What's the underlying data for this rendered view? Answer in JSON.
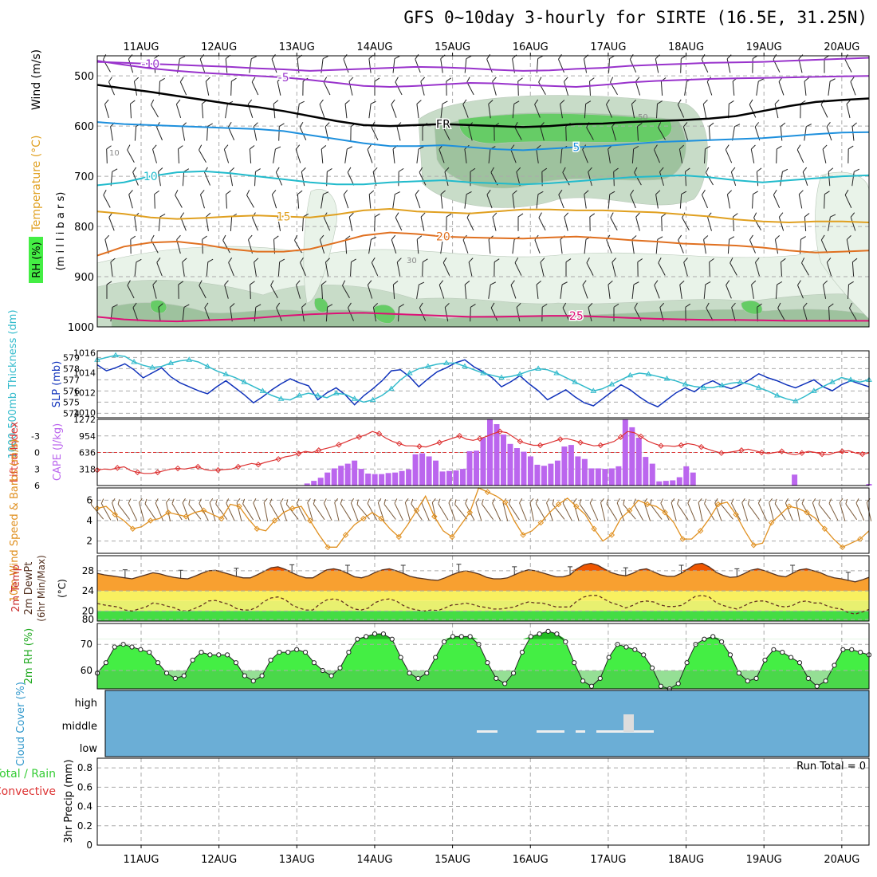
{
  "title": "GFS 0~10day 3-hourly for SIRTE (16.5E, 31.25N)",
  "colors": {
    "rh_fill": [
      "#e9f3e9",
      "#c8dcc8",
      "#9ec29e",
      "#66cc66"
    ],
    "temp_5": "#9933cc",
    "temp_fr": "#000000",
    "temp_p5": "#1e90dd",
    "temp_10": "#22bbcc",
    "temp_15": "#e0a020",
    "temp_20": "#e07020",
    "temp_25": "#dd1177",
    "slp": "#1133bb",
    "thickness": "#33bbcc",
    "li": "#dd3333",
    "cape": "#bb66ee",
    "wind10": "#e09020",
    "temp_fill_top": "#ee5500",
    "temp_fill": "#f8a030",
    "band_yellow": "#f8f060",
    "band_yellow2": "#e8f070",
    "band_green": "#44dd44",
    "rh_green": "#44ee44",
    "rh_green_dark": "#22bb22",
    "cloud_bg": "#6baed6"
  },
  "chart_data": [
    {
      "panel": "upper_air",
      "type": "area",
      "ylabel_parts": [
        "Wind (m/s)",
        "Temperature (°C)",
        "(m i l l i b a r s)",
        "RH (%)"
      ],
      "x_ticks": [
        "11AUG",
        "12AUG",
        "13AUG",
        "14AUG",
        "15AUG",
        "16AUG",
        "17AUG",
        "18AUG",
        "19AUG",
        "20AUG"
      ],
      "y_ticks": [
        500,
        600,
        700,
        800,
        900,
        1000
      ],
      "ylim": [
        460,
        1000
      ],
      "isotherms": [
        {
          "label": "-10",
          "key": "temp_5",
          "values": [
            472,
            474,
            476,
            478,
            480,
            482,
            485,
            487,
            490,
            488,
            486,
            484,
            482,
            483,
            485,
            488,
            490,
            489,
            486,
            484,
            480,
            478,
            476,
            474,
            473,
            472,
            470,
            468,
            466,
            464
          ]
        },
        {
          "label": "-5",
          "key": "temp_5",
          "values": [
            470,
            478,
            485,
            490,
            494,
            497,
            500,
            503,
            508,
            514,
            520,
            522,
            520,
            517,
            514,
            515,
            518,
            520,
            522,
            518,
            513,
            510,
            508,
            506,
            505,
            504,
            503,
            502,
            501,
            500
          ]
        },
        {
          "label": "FR",
          "key": "temp_fr",
          "values": [
            518,
            525,
            532,
            540,
            548,
            556,
            562,
            570,
            580,
            590,
            598,
            600,
            598,
            596,
            598,
            600,
            602,
            600,
            596,
            595,
            592,
            590,
            588,
            585,
            580,
            570,
            560,
            552,
            548,
            545
          ]
        },
        {
          "label": "5",
          "key": "temp_p5",
          "values": [
            592,
            596,
            598,
            600,
            602,
            604,
            606,
            610,
            618,
            626,
            634,
            640,
            640,
            638,
            642,
            646,
            648,
            645,
            642,
            640,
            636,
            632,
            630,
            628,
            626,
            624,
            620,
            616,
            613,
            612
          ]
        },
        {
          "label": "10",
          "key": "temp_10",
          "values": [
            718,
            712,
            700,
            692,
            690,
            694,
            700,
            706,
            712,
            716,
            716,
            712,
            710,
            708,
            712,
            714,
            716,
            714,
            710,
            706,
            702,
            700,
            698,
            702,
            708,
            712,
            708,
            704,
            700,
            698
          ]
        },
        {
          "label": "15",
          "key": "temp_15",
          "values": [
            770,
            775,
            782,
            785,
            783,
            780,
            778,
            780,
            782,
            776,
            768,
            765,
            770,
            772,
            774,
            770,
            766,
            766,
            768,
            768,
            770,
            772,
            776,
            780,
            786,
            790,
            792,
            790,
            790,
            792
          ]
        },
        {
          "label": "20",
          "key": "temp_20",
          "values": [
            858,
            840,
            832,
            830,
            836,
            845,
            850,
            850,
            845,
            832,
            818,
            812,
            815,
            820,
            822,
            823,
            824,
            822,
            820,
            823,
            827,
            830,
            834,
            836,
            838,
            842,
            848,
            852,
            850,
            848
          ]
        },
        {
          "label": "25",
          "key": "temp_25",
          "values": [
            980,
            985,
            988,
            989,
            987,
            985,
            982,
            978,
            975,
            973,
            972,
            974,
            976,
            978,
            980,
            980,
            979,
            978,
            978,
            980,
            982,
            984,
            985,
            986,
            986,
            987,
            988,
            988,
            988,
            988
          ]
        }
      ],
      "isotherm_labels": [
        "-10",
        "-5",
        "FR",
        "5",
        "10",
        "15",
        "20",
        "25"
      ],
      "rh_labels": [
        "10",
        "30",
        "50"
      ]
    },
    {
      "panel": "slp_thickness",
      "type": "line",
      "ylabel_left": "1000-500mb Thickness (dm)",
      "ylabel_right": "SLP (mb)",
      "slp_ticks": [
        1016,
        1014,
        1012,
        1010
      ],
      "thk_ticks": [
        579,
        578,
        577,
        576,
        575,
        574
      ],
      "slp_ylim": [
        1009.5,
        1016.2
      ],
      "thk_ylim": [
        573.6,
        579.6
      ],
      "series": [
        {
          "key": "slp",
          "values": [
            1014.8,
            1014.2,
            1014.5,
            1014.9,
            1014.3,
            1013.5,
            1014.0,
            1014.5,
            1013.6,
            1013.0,
            1012.6,
            1012.2,
            1011.9,
            1012.6,
            1013.2,
            1012.5,
            1011.8,
            1011.0,
            1011.6,
            1012.3,
            1012.9,
            1013.4,
            1013.0,
            1012.7,
            1011.3,
            1012.0,
            1012.5,
            1011.8,
            1010.8,
            1011.7,
            1012.4,
            1013.2,
            1014.2,
            1014.3,
            1013.6,
            1012.6,
            1013.4,
            1014.1,
            1014.5,
            1015.0,
            1015.3,
            1014.6,
            1014.1,
            1013.5,
            1012.6,
            1013.1,
            1013.7,
            1012.9,
            1012.2,
            1011.3,
            1011.8,
            1012.3,
            1011.6,
            1011.0,
            1010.7,
            1011.4,
            1012.1,
            1012.8,
            1012.3,
            1011.6,
            1011.0,
            1010.6,
            1011.3,
            1012.0,
            1012.5,
            1012.1,
            1012.8,
            1013.2,
            1012.7,
            1012.4,
            1012.8,
            1013.3,
            1013.9,
            1013.5,
            1013.2,
            1012.8,
            1012.5,
            1012.9,
            1013.3,
            1012.6,
            1012.2,
            1012.8,
            1013.2,
            1012.9,
            1012.6
          ]
        },
        {
          "key": "thickness",
          "values": [
            578.8,
            579.0,
            579.2,
            579.1,
            578.6,
            578.3,
            578.1,
            578.2,
            578.5,
            578.7,
            578.8,
            578.6,
            578.2,
            577.8,
            577.5,
            577.2,
            576.8,
            576.4,
            576.0,
            575.6,
            575.3,
            575.2,
            575.6,
            575.8,
            575.6,
            575.4,
            575.8,
            575.7,
            575.3,
            575.0,
            575.2,
            575.6,
            576.2,
            577.0,
            577.6,
            578.0,
            578.2,
            578.4,
            578.5,
            578.5,
            578.2,
            577.9,
            577.6,
            577.4,
            577.2,
            577.3,
            577.5,
            577.8,
            578.0,
            577.9,
            577.6,
            577.2,
            576.8,
            576.4,
            576.0,
            576.2,
            576.6,
            577.0,
            577.4,
            577.6,
            577.5,
            577.3,
            577.1,
            576.9,
            576.6,
            576.4,
            576.3,
            576.3,
            576.5,
            576.7,
            576.8,
            576.6,
            576.3,
            576.0,
            575.6,
            575.3,
            575.1,
            575.5,
            576.0,
            576.4,
            576.8,
            577.2,
            577.0,
            576.8,
            577.0
          ]
        }
      ]
    },
    {
      "panel": "cape_li",
      "type": "bar",
      "ylabel_left": "Lifted Index",
      "ylabel_right": "CAPE (J/kg)",
      "li_ticks": [
        -3,
        0,
        3,
        6
      ],
      "cape_ticks": [
        1272,
        954,
        636,
        318
      ],
      "cape_ylim": [
        0,
        1272
      ],
      "li_ylim": [
        6,
        -6
      ],
      "series": [
        {
          "key": "li",
          "values": [
            3.2,
            3.0,
            3.1,
            2.8,
            2.6,
            3.3,
            3.6,
            3.8,
            3.8,
            3.6,
            3.3,
            3.0,
            2.9,
            3.0,
            2.8,
            2.6,
            3.1,
            3.3,
            3.2,
            3.1,
            3.0,
            2.6,
            2.3,
            2.0,
            2.2,
            1.8,
            1.5,
            1.2,
            0.8,
            0.6,
            0.2,
            -0.2,
            0.0,
            -0.4,
            -0.7,
            -1.0,
            -1.4,
            -1.9,
            -2.4,
            -2.8,
            -3.2,
            -3.8,
            -3.4,
            -2.6,
            -2.0,
            -1.6,
            -1.2,
            -1.2,
            -1.1,
            -1.0,
            -1.4,
            -1.8,
            -2.2,
            -2.6,
            -3.0,
            -2.4,
            -2.2,
            -2.5,
            -2.9,
            -3.4,
            -3.8,
            -3.6,
            -2.8,
            -2.0,
            -1.6,
            -1.3,
            -1.3,
            -1.6,
            -2.0,
            -2.4,
            -2.5,
            -2.2,
            -1.8,
            -1.5,
            -1.2,
            -1.3,
            -1.6,
            -2.0,
            -2.8,
            -3.8,
            -3.6,
            -2.9,
            -2.1,
            -1.6,
            -1.2,
            -1.2,
            -1.1,
            -1.3,
            -1.6,
            -1.4,
            -1.0,
            -0.6,
            -0.2,
            0.1,
            0.0,
            -0.2,
            -0.4,
            -0.6,
            -0.3,
            0.0,
            0.2,
            0.0,
            -0.2,
            0.2,
            0.4,
            0.1,
            -0.2,
            0.0,
            0.3,
            0.4,
            0.0,
            -0.2,
            -0.3,
            0.1,
            0.3,
            0.1
          ]
        },
        {
          "key": "cape",
          "values": [
            0,
            0,
            0,
            0,
            0,
            0,
            0,
            0,
            0,
            0,
            0,
            0,
            0,
            0,
            0,
            0,
            0,
            0,
            0,
            0,
            0,
            0,
            0,
            0,
            0,
            0,
            0,
            0,
            0,
            0,
            0,
            40,
            90,
            150,
            250,
            330,
            380,
            420,
            480,
            320,
            230,
            220,
            220,
            240,
            250,
            280,
            310,
            600,
            620,
            560,
            480,
            270,
            280,
            290,
            320,
            660,
            670,
            920,
            1280,
            1180,
            980,
            800,
            720,
            650,
            560,
            400,
            380,
            420,
            480,
            750,
            780,
            560,
            510,
            330,
            330,
            320,
            330,
            370,
            1280,
            1120,
            920,
            550,
            420,
            80,
            90,
            100,
            160,
            370,
            250,
            0,
            0,
            0,
            0,
            0,
            0,
            0,
            0,
            0,
            0,
            0,
            0,
            0,
            0,
            210,
            0,
            0,
            0,
            0,
            0,
            0,
            0,
            0,
            0,
            0,
            30
          ]
        }
      ]
    },
    {
      "panel": "wind10",
      "type": "line",
      "ylabel": "10m Wind Speed & Barbs (m/s)",
      "ticks": [
        6,
        4,
        2
      ],
      "ylim": [
        0.8,
        7.2
      ],
      "values": [
        5.2,
        5.4,
        4.6,
        4.0,
        3.2,
        3.4,
        4.0,
        4.2,
        4.8,
        4.6,
        4.4,
        4.8,
        5.0,
        4.6,
        4.2,
        5.6,
        5.4,
        4.2,
        3.2,
        3.0,
        4.0,
        4.8,
        5.2,
        5.4,
        4.0,
        2.6,
        1.4,
        1.4,
        2.6,
        3.6,
        4.2,
        4.8,
        4.2,
        3.2,
        2.4,
        3.6,
        5.0,
        6.4,
        4.4,
        3.0,
        2.4,
        3.6,
        4.8,
        7.2,
        6.8,
        6.4,
        5.8,
        4.0,
        2.6,
        3.0,
        3.8,
        4.8,
        5.6,
        6.2,
        5.4,
        4.6,
        3.2,
        2.0,
        2.6,
        4.2,
        5.0,
        6.0,
        5.6,
        5.4,
        4.8,
        3.8,
        2.2,
        2.2,
        3.0,
        4.2,
        5.6,
        5.8,
        4.6,
        3.0,
        1.6,
        1.8,
        3.8,
        4.6,
        5.4,
        5.2,
        4.8,
        4.2,
        3.2,
        2.2,
        1.4,
        1.8,
        2.2,
        3.0
      ]
    },
    {
      "panel": "t2m",
      "type": "area",
      "ylabel_parts": [
        "2m Temp",
        "2m DewPt",
        "(6hr Min/Max)",
        "(°C)"
      ],
      "ticks": [
        28,
        24,
        20,
        80
      ],
      "ylim": [
        18,
        31
      ],
      "temp": [
        27.5,
        27.2,
        27.0,
        26.8,
        26.6,
        26.4,
        26.8,
        27.2,
        27.6,
        27.4,
        27.0,
        26.7,
        26.5,
        26.4,
        26.9,
        27.5,
        28.0,
        28.1,
        27.7,
        27.3,
        26.9,
        26.6,
        26.6,
        27.2,
        27.9,
        28.6,
        28.8,
        28.3,
        27.6,
        27.0,
        26.6,
        26.6,
        27.4,
        28.2,
        28.4,
        28.1,
        27.5,
        26.8,
        26.6,
        27.0,
        27.7,
        28.2,
        28.4,
        28.0,
        27.5,
        26.9,
        26.6,
        26.4,
        26.2,
        26.1,
        26.6,
        27.2,
        27.7,
        28.0,
        27.7,
        27.3,
        26.7,
        26.4,
        26.4,
        26.6,
        27.2,
        27.8,
        28.2,
        28.0,
        27.6,
        27.2,
        26.8,
        26.8,
        27.2,
        28.4,
        29.2,
        29.5,
        29.1,
        28.3,
        27.6,
        27.2,
        27.0,
        27.5,
        28.2,
        28.4,
        27.8,
        27.2,
        26.9,
        26.9,
        27.5,
        28.4,
        29.3,
        29.5,
        28.8,
        27.7,
        27.1,
        26.7,
        26.8,
        27.4,
        28.1,
        28.4,
        28.0,
        27.5,
        27.0,
        26.8,
        27.5,
        28.2,
        28.4,
        28.0,
        27.6,
        27.0,
        26.6,
        26.4,
        26.1,
        25.8,
        26.2,
        26.7
      ]
    },
    {
      "panel": "rh2m",
      "type": "area",
      "ylabel": "2m RH (%)",
      "ticks": [
        70,
        60
      ],
      "ylim": [
        53,
        78
      ],
      "values": [
        59,
        63,
        69,
        70,
        69,
        68,
        67,
        63,
        59,
        57,
        58,
        64,
        67,
        66,
        66,
        66,
        63,
        58,
        56,
        58,
        64,
        67,
        67,
        68,
        67,
        63,
        60,
        58,
        61,
        67,
        72,
        73,
        74,
        74,
        72,
        65,
        59,
        57,
        59,
        65,
        71,
        73,
        73,
        73,
        70,
        63,
        57,
        55,
        59,
        67,
        73,
        74,
        75,
        74,
        71,
        63,
        56,
        54,
        57,
        65,
        70,
        69,
        68,
        66,
        61,
        54,
        53,
        55,
        63,
        70,
        72,
        73,
        71,
        66,
        59,
        56,
        57,
        64,
        68,
        67,
        65,
        63,
        57,
        54,
        56,
        62,
        68,
        68,
        67,
        66
      ]
    },
    {
      "panel": "cloud",
      "type": "bar",
      "ylabel": "Cloud Cover (%)",
      "levels": [
        "high",
        "middle",
        "low"
      ]
    },
    {
      "panel": "precip",
      "type": "bar",
      "ylabel_left": "Total / Rain",
      "ylabel_left2": "Convective",
      "ylabel": "3hr Precip (mm)",
      "ticks": [
        "0.8",
        "0.6",
        "0.4",
        "0.2",
        "0"
      ],
      "ylim": [
        0,
        0.9
      ],
      "values": [],
      "note": "Run Total = 0"
    }
  ]
}
